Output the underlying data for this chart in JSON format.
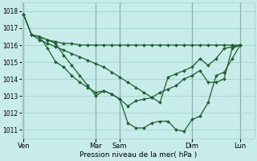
{
  "background_color": "#c8ece9",
  "grid_color": "#9ecfc8",
  "line_color": "#1e5e30",
  "xlabel": "Pression niveau de la mer( hPa )",
  "ylim": [
    1010.5,
    1018.5
  ],
  "yticks": [
    1011,
    1012,
    1013,
    1014,
    1015,
    1016,
    1017,
    1018
  ],
  "xtick_labels": [
    "Ven",
    "Mar",
    "Sam",
    "Dim",
    "Lun"
  ],
  "xtick_positions": [
    0,
    36,
    48,
    84,
    108
  ],
  "xlim": [
    -1,
    115
  ],
  "series1_x": [
    0,
    4,
    8,
    12,
    16,
    20,
    24,
    28,
    32,
    36,
    40,
    44,
    48,
    52,
    56,
    60,
    64,
    68,
    72,
    76,
    80,
    84,
    88,
    92,
    96,
    100,
    104,
    108
  ],
  "series1_y": [
    1017.8,
    1016.6,
    1016.5,
    1016.3,
    1016.2,
    1016.1,
    1016.1,
    1016.0,
    1016.0,
    1016.0,
    1016.0,
    1016.0,
    1016.0,
    1016.0,
    1016.0,
    1016.0,
    1016.0,
    1016.0,
    1016.0,
    1016.0,
    1016.0,
    1016.0,
    1016.0,
    1016.0,
    1016.0,
    1016.0,
    1016.0,
    1016.0
  ],
  "series2_x": [
    0,
    4,
    8,
    12,
    16,
    20,
    24,
    28,
    32,
    36,
    40,
    44,
    48,
    52,
    56,
    60,
    64,
    68,
    72,
    76,
    80,
    84,
    88,
    92,
    96,
    100,
    104,
    108
  ],
  "series2_y": [
    1017.8,
    1016.6,
    1016.3,
    1016.1,
    1015.9,
    1015.7,
    1015.5,
    1015.3,
    1015.1,
    1014.9,
    1014.7,
    1014.4,
    1014.1,
    1013.8,
    1013.5,
    1013.2,
    1012.9,
    1012.6,
    1014.1,
    1014.3,
    1014.5,
    1014.7,
    1015.2,
    1014.8,
    1015.2,
    1015.8,
    1015.9,
    1016.0
  ],
  "series3_x": [
    0,
    4,
    8,
    12,
    16,
    20,
    24,
    28,
    32,
    36,
    40,
    44,
    48,
    52,
    56,
    60,
    64,
    68,
    72,
    76,
    80,
    84,
    88,
    92,
    96,
    100,
    104,
    108
  ],
  "series3_y": [
    1017.8,
    1016.6,
    1016.5,
    1015.8,
    1015.0,
    1014.7,
    1014.2,
    1013.8,
    1013.5,
    1013.2,
    1013.3,
    1013.1,
    1012.8,
    1011.4,
    1011.1,
    1011.1,
    1011.4,
    1011.5,
    1011.5,
    1011.0,
    1010.9,
    1011.6,
    1011.8,
    1012.6,
    1014.2,
    1014.4,
    1015.2,
    1016.0
  ],
  "series4_x": [
    8,
    12,
    16,
    20,
    24,
    28,
    32,
    36,
    40,
    44,
    48,
    52,
    56,
    60,
    64,
    68,
    72,
    76,
    80,
    84,
    88,
    92,
    96,
    100,
    104,
    108
  ],
  "series4_y": [
    1016.5,
    1016.3,
    1016.1,
    1015.4,
    1014.8,
    1014.2,
    1013.6,
    1013.0,
    1013.3,
    1013.1,
    1012.8,
    1012.4,
    1012.7,
    1012.8,
    1012.9,
    1013.2,
    1013.4,
    1013.6,
    1014.0,
    1014.2,
    1014.5,
    1013.8,
    1013.8,
    1014.0,
    1015.8,
    1016.0
  ]
}
